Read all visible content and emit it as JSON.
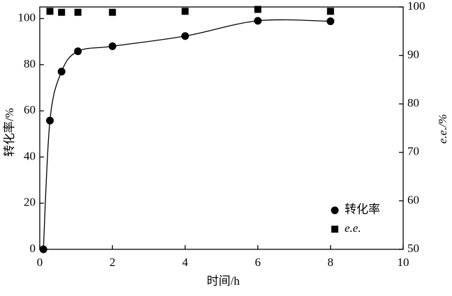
{
  "chart_data": {
    "type": "line-scatter",
    "x_label": "时间/h",
    "y_label": "转化率/%",
    "y2_label": "e.e./%",
    "xlim": [
      0,
      10
    ],
    "xticks": [
      0,
      2,
      4,
      6,
      8,
      10
    ],
    "ylim": [
      0,
      105
    ],
    "yticks": [
      0,
      20,
      40,
      60,
      80,
      100
    ],
    "y2lim": [
      50,
      100
    ],
    "y2ticks": [
      50,
      60,
      70,
      80,
      90,
      100
    ],
    "legend": "lower right",
    "series": [
      {
        "name": "转化率",
        "color": "#000000",
        "marker": "circle",
        "smooth": true,
        "x": [
          0.1,
          0.28,
          0.6,
          1.05,
          2,
          4,
          6,
          8
        ],
        "values": [
          0,
          55.8,
          77,
          85.8,
          88,
          92.4,
          99,
          98.8
        ]
      },
      {
        "name": "e.e.",
        "color": "#000000",
        "marker": "square",
        "axis": "y2",
        "x": [
          0.28,
          0.6,
          1.05,
          2,
          4,
          6,
          8
        ],
        "values": [
          99.1,
          98.9,
          98.9,
          98.9,
          99.1,
          99.5,
          99.1
        ]
      }
    ]
  }
}
